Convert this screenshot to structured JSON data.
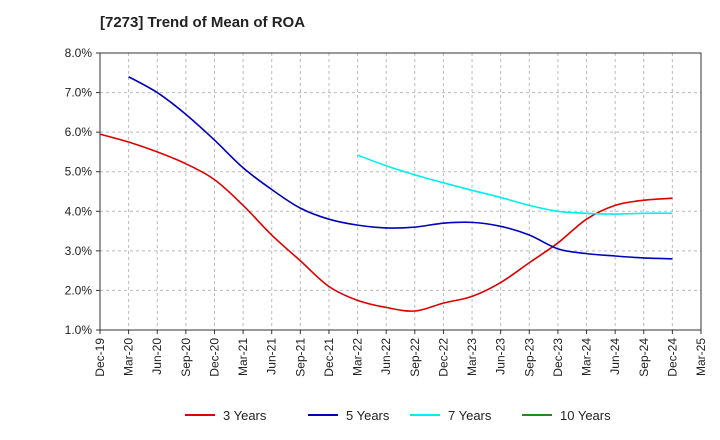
{
  "chart_data": {
    "type": "line",
    "title": "[7273]  Trend of Mean of ROA",
    "xlabel": "",
    "ylabel": "",
    "x_ticks": [
      "Dec-19",
      "Mar-20",
      "Jun-20",
      "Sep-20",
      "Dec-20",
      "Mar-21",
      "Jun-21",
      "Sep-21",
      "Dec-21",
      "Mar-22",
      "Jun-22",
      "Sep-22",
      "Dec-22",
      "Mar-23",
      "Jun-23",
      "Sep-23",
      "Dec-23",
      "Mar-24",
      "Jun-24",
      "Sep-24",
      "Dec-24",
      "Mar-25"
    ],
    "y_ticks": [
      "1.0%",
      "2.0%",
      "3.0%",
      "4.0%",
      "5.0%",
      "6.0%",
      "7.0%",
      "8.0%"
    ],
    "ylim": [
      1.0,
      8.0
    ],
    "grid": true,
    "legend_position": "bottom",
    "series": [
      {
        "name": "3 Years",
        "color": "#dd0000",
        "values": [
          5.95,
          5.75,
          5.5,
          5.2,
          4.8,
          4.15,
          3.4,
          2.75,
          2.1,
          1.75,
          1.57,
          1.48,
          1.68,
          1.85,
          2.2,
          2.7,
          3.2,
          3.8,
          4.15,
          4.28,
          4.33,
          null
        ]
      },
      {
        "name": "5 Years",
        "color": "#0000bb",
        "values": [
          null,
          7.4,
          7.0,
          6.45,
          5.8,
          5.1,
          4.55,
          4.08,
          3.8,
          3.65,
          3.58,
          3.6,
          3.7,
          3.72,
          3.62,
          3.4,
          3.05,
          2.93,
          2.87,
          2.82,
          2.8,
          null
        ]
      },
      {
        "name": "7 Years",
        "color": "#00eeee",
        "values": [
          null,
          null,
          null,
          null,
          null,
          null,
          null,
          null,
          null,
          5.42,
          5.15,
          4.92,
          4.72,
          4.53,
          4.35,
          4.15,
          4.0,
          3.95,
          3.93,
          3.95,
          3.95,
          null
        ]
      },
      {
        "name": "10 Years",
        "color": "#228b22",
        "values": [
          null,
          null,
          null,
          null,
          null,
          null,
          null,
          null,
          null,
          null,
          null,
          null,
          null,
          null,
          null,
          null,
          null,
          null,
          null,
          null,
          null,
          null
        ]
      }
    ]
  }
}
